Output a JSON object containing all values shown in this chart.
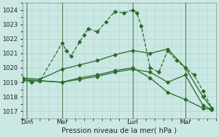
{
  "background_color": "#cce8e4",
  "grid_color": "#aad4cc",
  "line_color": "#2d6e2d",
  "separator_color": "#4a7a4a",
  "title": "Pression niveau de la mer( hPa )",
  "xlabel_fontsize": 7.5,
  "tick_fontsize": 6.5,
  "ylim": [
    1016.5,
    1024.5
  ],
  "yticks": [
    1017,
    1018,
    1019,
    1020,
    1021,
    1022,
    1023,
    1024
  ],
  "xlim": [
    0,
    44
  ],
  "day_labels": [
    "Dim",
    "Mer",
    "Lun",
    "Mar"
  ],
  "day_positions": [
    1,
    9,
    25,
    37
  ],
  "series": [
    {
      "x": [
        0,
        2,
        4,
        9,
        10,
        11,
        13,
        14,
        15,
        17,
        19,
        21,
        23,
        25,
        26,
        27,
        29,
        31,
        33,
        35,
        37,
        39,
        41,
        43
      ],
      "y": [
        1019.3,
        1019.0,
        1019.1,
        1021.7,
        1021.2,
        1020.8,
        1021.8,
        1022.3,
        1022.7,
        1022.5,
        1023.2,
        1023.9,
        1023.8,
        1024.0,
        1023.8,
        1022.9,
        1020.0,
        1019.7,
        1021.2,
        1020.5,
        1020.0,
        1019.5,
        1018.4,
        1017.2
      ],
      "marker": "D",
      "markersize": 2.5,
      "linewidth": 1.0,
      "linestyle": "--"
    },
    {
      "x": [
        0,
        4,
        9,
        13,
        17,
        21,
        25,
        29,
        33,
        37,
        41,
        43
      ],
      "y": [
        1019.3,
        1019.2,
        1019.9,
        1020.2,
        1020.5,
        1020.9,
        1021.2,
        1021.0,
        1021.3,
        1020.0,
        1018.0,
        1017.2
      ],
      "marker": "D",
      "markersize": 2.5,
      "linewidth": 1.0,
      "linestyle": "-"
    },
    {
      "x": [
        0,
        4,
        9,
        13,
        17,
        21,
        25,
        29,
        33,
        37,
        41,
        43
      ],
      "y": [
        1019.1,
        1019.1,
        1019.0,
        1019.3,
        1019.5,
        1019.8,
        1020.0,
        1019.3,
        1018.3,
        1017.8,
        1017.2,
        1017.1
      ],
      "marker": "D",
      "markersize": 2.5,
      "linewidth": 1.0,
      "linestyle": "-"
    },
    {
      "x": [
        0,
        4,
        9,
        13,
        17,
        21,
        25,
        29,
        33,
        37,
        41,
        43
      ],
      "y": [
        1019.2,
        1019.1,
        1019.0,
        1019.2,
        1019.4,
        1019.7,
        1019.9,
        1019.7,
        1019.0,
        1019.5,
        1017.4,
        1017.1
      ],
      "marker": "D",
      "markersize": 2.5,
      "linewidth": 1.0,
      "linestyle": "-"
    }
  ]
}
